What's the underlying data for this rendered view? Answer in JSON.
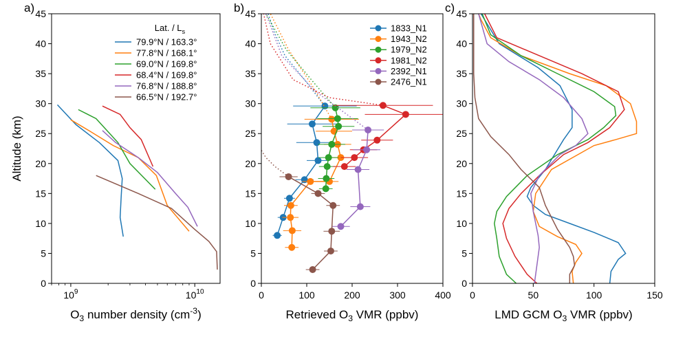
{
  "chart_data": [
    {
      "panel": "a)",
      "type": "line",
      "xscale": "log",
      "xlim": [
        700000000.0,
        16000000000.0
      ],
      "ylim": [
        0,
        45
      ],
      "xticks": [
        1000000000.0,
        10000000000.0
      ],
      "xtick_labels": [
        "10^9",
        "10^10"
      ],
      "yticks": [
        0,
        5,
        10,
        15,
        20,
        25,
        30,
        35,
        40,
        45
      ],
      "ylabel": "Altitude (km)",
      "xlabel": "O_3 number density (cm^-3)",
      "legend_title": "Lat. / L_s",
      "legend_loc": "upper-right",
      "series": [
        {
          "name": "79.9°N / 163.3°",
          "color": "#1f77b4",
          "points": [
            [
              780000000.0,
              29.8
            ],
            [
              1100000000.0,
              26.5
            ],
            [
              1700000000.0,
              23.5
            ],
            [
              2400000000.0,
              20.5
            ],
            [
              2600000000.0,
              17.5
            ],
            [
              2550000000.0,
              14.5
            ],
            [
              2500000000.0,
              11
            ],
            [
              2650000000.0,
              7.8
            ]
          ]
        },
        {
          "name": "77.8°N / 168.1°",
          "color": "#ff7f0e",
          "points": [
            [
              1000000000.0,
              27.3
            ],
            [
              1400000000.0,
              25.5
            ],
            [
              2200000000.0,
              23.0
            ],
            [
              3500000000.0,
              21.0
            ],
            [
              4900000000.0,
              18.0
            ],
            [
              6000000000.0,
              13.0
            ],
            [
              9000000000.0,
              8.7
            ]
          ]
        },
        {
          "name": "69.0°N / 169.8°",
          "color": "#2ca02c",
          "points": [
            [
              1150000000.0,
              29.0
            ],
            [
              1600000000.0,
              27.5
            ],
            [
              2000000000.0,
              25.3
            ],
            [
              2400000000.0,
              23.5
            ],
            [
              3000000000.0,
              20.0
            ],
            [
              4800000000.0,
              15.7
            ]
          ]
        },
        {
          "name": "68.4°N / 169.8°",
          "color": "#d62728",
          "points": [
            [
              1800000000.0,
              29.6
            ],
            [
              2500000000.0,
              28.2
            ],
            [
              3000000000.0,
              26.0
            ],
            [
              3700000000.0,
              24.0
            ],
            [
              4600000000.0,
              19.5
            ]
          ]
        },
        {
          "name": "76.8°N / 188.8°",
          "color": "#9467bd",
          "points": [
            [
              1800000000.0,
              25.5
            ],
            [
              2300000000.0,
              23.5
            ],
            [
              3500000000.0,
              21.0
            ],
            [
              5000000000.0,
              18.5
            ],
            [
              7000000000.0,
              15.0
            ],
            [
              8800000000.0,
              12.7
            ],
            [
              10500000000.0,
              9.5
            ]
          ]
        },
        {
          "name": "66.5°N / 192.7°",
          "color": "#8c564b",
          "points": [
            [
              1600000000.0,
              18.0
            ],
            [
              3500000000.0,
              15.0
            ],
            [
              6500000000.0,
              12.5
            ],
            [
              10000000000.0,
              9.0
            ],
            [
              13000000000.0,
              7.0
            ],
            [
              15000000000.0,
              5.3
            ],
            [
              15200000000.0,
              2.3
            ]
          ]
        }
      ]
    },
    {
      "panel": "b)",
      "type": "line",
      "xlim": [
        0,
        400
      ],
      "ylim": [
        0,
        45
      ],
      "xticks": [
        0,
        100,
        200,
        300,
        400
      ],
      "yticks": [
        0,
        5,
        10,
        15,
        20,
        25,
        30,
        35,
        40,
        45
      ],
      "xlabel": "Retrieved O_3 VMR (ppbv)",
      "legend_loc": "upper-right",
      "series": [
        {
          "name": "1833_N1",
          "color": "#1f77b4",
          "points": [
            [
              35,
              8.0
            ],
            [
              48,
              11.0
            ],
            [
              62,
              14.2
            ],
            [
              95,
              17.3
            ],
            [
              125,
              20.5
            ],
            [
              122,
              23.5
            ],
            [
              112,
              26.6
            ],
            [
              140,
              29.6
            ]
          ],
          "xerr": [
            10,
            12,
            12,
            20,
            25,
            45,
            55,
            70
          ],
          "extension": [
            [
              140,
              29.6
            ],
            [
              95,
              34
            ],
            [
              52,
              38
            ],
            [
              28,
              42
            ],
            [
              15,
              45
            ]
          ]
        },
        {
          "name": "1943_N2",
          "color": "#ff7f0e",
          "points": [
            [
              67,
              6.0
            ],
            [
              68,
              8.8
            ],
            [
              64,
              11.0
            ],
            [
              65,
              13.0
            ],
            [
              108,
              17.0
            ],
            [
              150,
              17.0
            ],
            [
              175,
              21.0
            ],
            [
              168,
              23.2
            ],
            [
              160,
              25.4
            ],
            [
              155,
              27.4
            ]
          ],
          "xerr": [
            15,
            20,
            18,
            15,
            18,
            20,
            25,
            30,
            40,
            60
          ],
          "extension": [
            [
              155,
              27.4
            ],
            [
              112,
              33
            ],
            [
              60,
              39
            ],
            [
              20,
              45
            ]
          ]
        },
        {
          "name": "1979_N2",
          "color": "#2ca02c",
          "points": [
            [
              142,
              15.8
            ],
            [
              143,
              17.5
            ],
            [
              145,
              19.5
            ],
            [
              148,
              21.0
            ],
            [
              155,
              23.2
            ],
            [
              170,
              26.2
            ],
            [
              168,
              27.5
            ],
            [
              163,
              29.3
            ]
          ],
          "xerr": [
            15,
            18,
            18,
            22,
            30,
            35,
            45,
            55
          ],
          "extension": [
            [
              163,
              29.3
            ],
            [
              110,
              34
            ],
            [
              55,
              39
            ],
            [
              10,
              45
            ]
          ]
        },
        {
          "name": "1981_N2",
          "color": "#d62728",
          "points": [
            [
              183,
              19.5
            ],
            [
              205,
              21.0
            ],
            [
              225,
              22.3
            ],
            [
              255,
              23.9
            ],
            [
              318,
              28.2
            ],
            [
              268,
              29.7
            ]
          ],
          "xerr": [
            25,
            30,
            30,
            35,
            90,
            110
          ],
          "extension": [
            [
              268,
              29.7
            ],
            [
              150,
              31
            ],
            [
              70,
              34
            ],
            [
              20,
              40
            ],
            [
              5,
              45
            ]
          ]
        },
        {
          "name": "2392_N1",
          "color": "#9467bd",
          "points": [
            [
              175,
              9.5
            ],
            [
              218,
              12.8
            ],
            [
              213,
              19.0
            ],
            [
              232,
              22.3
            ],
            [
              235,
              25.6
            ]
          ],
          "xerr": [
            20,
            22,
            25,
            30,
            35
          ],
          "extension": [
            [
              235,
              25.6
            ],
            [
              120,
              32
            ],
            [
              45,
              38
            ],
            [
              10,
              45
            ]
          ]
        },
        {
          "name": "2476_N1",
          "color": "#8c564b",
          "points": [
            [
              113,
              2.3
            ],
            [
              153,
              5.4
            ],
            [
              155,
              8.7
            ],
            [
              158,
              13.0
            ],
            [
              125,
              15.0
            ],
            [
              60,
              17.8
            ]
          ],
          "xerr": [
            15,
            15,
            18,
            15,
            15,
            20
          ],
          "extension": [
            [
              60,
              17.8
            ],
            [
              30,
              19.5
            ],
            [
              10,
              21.0
            ],
            [
              0,
              22.2
            ]
          ]
        }
      ]
    },
    {
      "panel": "c)",
      "type": "line",
      "xlim": [
        0,
        150
      ],
      "ylim": [
        0,
        45
      ],
      "xticks": [
        0,
        50,
        100,
        150
      ],
      "yticks": [
        0,
        5,
        10,
        15,
        20,
        25,
        30,
        35,
        40,
        45
      ],
      "xlabel": "LMD GCM O_3 VMR (ppbv)",
      "series": [
        {
          "name": "1833_N1",
          "color": "#1f77b4",
          "points": [
            [
              113,
              0
            ],
            [
              114,
              2
            ],
            [
              120,
              4
            ],
            [
              126,
              5.0
            ],
            [
              120,
              6.8
            ],
            [
              100,
              8.5
            ],
            [
              80,
              10.0
            ],
            [
              60,
              11.5
            ],
            [
              50,
              13.0
            ],
            [
              45,
              14.5
            ],
            [
              48,
              16.0
            ],
            [
              60,
              19.0
            ],
            [
              75,
              24.0
            ],
            [
              82,
              26.0
            ],
            [
              82,
              29.0
            ],
            [
              72,
              33.0
            ],
            [
              54,
              36.0
            ],
            [
              22,
              40.0
            ],
            [
              10,
              44.0
            ],
            [
              7,
              45.0
            ]
          ]
        },
        {
          "name": "1943_N2",
          "color": "#ff7f0e",
          "points": [
            [
              83,
              0
            ],
            [
              82,
              2
            ],
            [
              85,
              3.5
            ],
            [
              90,
              5.0
            ],
            [
              85,
              6.5
            ],
            [
              70,
              7.8
            ],
            [
              55,
              9.5
            ],
            [
              50,
              12.0
            ],
            [
              52,
              15.0
            ],
            [
              65,
              19.0
            ],
            [
              100,
              23.0
            ],
            [
              118,
              24.0
            ],
            [
              135,
              25.0
            ],
            [
              135,
              27.0
            ],
            [
              130,
              30.0
            ],
            [
              110,
              33.0
            ],
            [
              80,
              35.0
            ],
            [
              40,
              38.0
            ],
            [
              15,
              41.0
            ],
            [
              7,
              44.0
            ],
            [
              5,
              45.0
            ]
          ]
        },
        {
          "name": "1979_N2",
          "color": "#2ca02c",
          "points": [
            [
              36,
              0
            ],
            [
              28,
              1.5
            ],
            [
              22,
              4.5
            ],
            [
              20,
              7.5
            ],
            [
              18,
              10.0
            ],
            [
              20,
              12.0
            ],
            [
              28,
              14.5
            ],
            [
              45,
              18.0
            ],
            [
              70,
              21.5
            ],
            [
              95,
              24.0
            ],
            [
              108,
              26.0
            ],
            [
              118,
              28.0
            ],
            [
              117,
              29.5
            ],
            [
              100,
              32.0
            ],
            [
              70,
              35.0
            ],
            [
              40,
              38.0
            ],
            [
              15,
              41.5
            ],
            [
              8,
              45.0
            ]
          ]
        },
        {
          "name": "1981_N2",
          "color": "#d62728",
          "points": [
            [
              53,
              0
            ],
            [
              45,
              1.5
            ],
            [
              35,
              4.5
            ],
            [
              28,
              7.5
            ],
            [
              25,
              10.0
            ],
            [
              30,
              12.5
            ],
            [
              40,
              15.0
            ],
            [
              55,
              18.0
            ],
            [
              75,
              21.5
            ],
            [
              95,
              23.5
            ],
            [
              113,
              26.0
            ],
            [
              125,
              29.0
            ],
            [
              120,
              32.0
            ],
            [
              90,
              35.0
            ],
            [
              55,
              38.0
            ],
            [
              20,
              41.0
            ],
            [
              10,
              45.0
            ]
          ]
        },
        {
          "name": "2392_N1",
          "color": "#9467bd",
          "points": [
            [
              51,
              0
            ],
            [
              53,
              3.0
            ],
            [
              55,
              6.0
            ],
            [
              54,
              8.0
            ],
            [
              50,
              12.0
            ],
            [
              48,
              15.0
            ],
            [
              55,
              18.0
            ],
            [
              72,
              21.5
            ],
            [
              85,
              23.0
            ],
            [
              95,
              25.0
            ],
            [
              90,
              27.5
            ],
            [
              75,
              31.0
            ],
            [
              55,
              34.0
            ],
            [
              30,
              37.0
            ],
            [
              12,
              40.0
            ],
            [
              5,
              45.0
            ]
          ]
        },
        {
          "name": "2476_N1",
          "color": "#8c564b",
          "points": [
            [
              80,
              0
            ],
            [
              80,
              1.5
            ],
            [
              84,
              3.0
            ],
            [
              83,
              4.5
            ],
            [
              80,
              6.0
            ],
            [
              70,
              9.0
            ],
            [
              60,
              13.0
            ],
            [
              55,
              16.0
            ],
            [
              40,
              19.0
            ],
            [
              30,
              21.5
            ],
            [
              15,
              24.5
            ],
            [
              5,
              27.5
            ],
            [
              2,
              31.0
            ],
            [
              1,
              35.0
            ],
            [
              1,
              45.0
            ]
          ]
        }
      ]
    }
  ]
}
